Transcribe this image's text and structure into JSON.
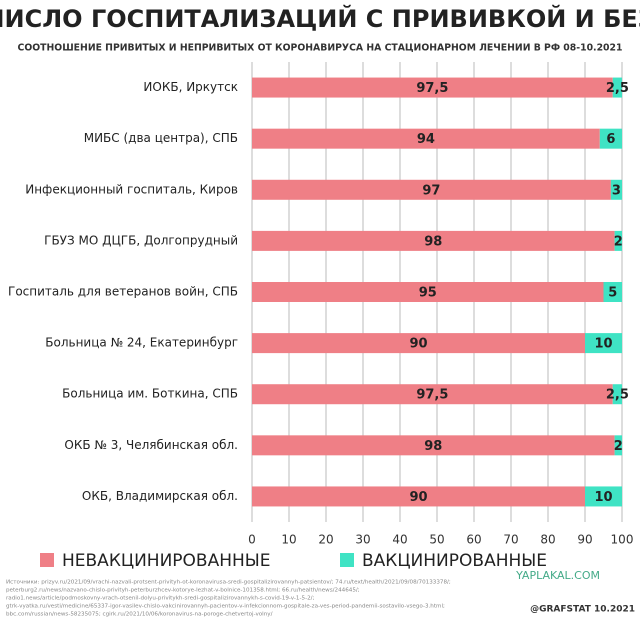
{
  "chart_data": {
    "type": "stacked-bar-horizontal",
    "title": "ЧИСЛО ГОСПИТАЛИЗАЦИЙ С ПРИВИВКОЙ И БЕЗ",
    "subtitle": "СООТНОШЕНИЕ ПРИВИТЫХ И НЕПРИВИТЫХ ОТ КОРОНАВИРУСА НА СТАЦИОНАРНОМ ЛЕЧЕНИИ В РФ 08-10.2021",
    "categories": [
      "ИОКБ, Иркутск",
      "МИБС (два центра), СПБ",
      "Инфекционный госпиталь, Киров",
      "ГБУЗ МО ДЦГБ, Долгопрудный",
      "Госпиталь для ветеранов войн, СПБ",
      "Больница № 24, Екатеринбург",
      "Больница им. Боткина, СПБ",
      "ОКБ № 3, Челябинская обл.",
      "ОКБ, Владимирская обл."
    ],
    "series": [
      {
        "name": "НЕВАКЦИНИРОВАННЫЕ",
        "color": "#ef7f86",
        "values": [
          97.5,
          94,
          97,
          98,
          95,
          90,
          97.5,
          98,
          90
        ],
        "value_labels": [
          "97,5",
          "94",
          "97",
          "98",
          "95",
          "90",
          "97,5",
          "98",
          "90"
        ]
      },
      {
        "name": "ВАКЦИНИРОВАННЫЕ",
        "color": "#3fe3c4",
        "values": [
          2.5,
          6,
          3,
          2,
          5,
          10,
          2.5,
          2,
          10
        ],
        "value_labels": [
          "2,5",
          "6",
          "3",
          "2",
          "5",
          "10",
          "2,5",
          "2",
          "10"
        ]
      }
    ],
    "xlim": [
      0,
      100
    ],
    "xticks": [
      0,
      10,
      20,
      30,
      40,
      50,
      60,
      70,
      80,
      90,
      100
    ],
    "grid": true,
    "sources": [
      "Источники: prizyv.ru/2021/09/vrachi-nazvali-protsent-privityh-ot-koronavirusa-sredi-gospitalizirovannyh-patsientov/; 74.ru/text/health/2021/09/08/70133378/;",
      "peterburg2.ru/news/nazvano-chislo-privityh-peterburzhcev-kotorye-lezhat-v-bolnice-101358.html; 66.ru/health/news/244645/;",
      "radio1.news/article/podmoskovny-vrach-otsenil-dolyu-privitykh-sredi-gospitalizirovannykh-s-covid-19-v-1-5-2/;",
      "gtrk-vyatka.ru/vesti/medicine/65337-igor-vasilev-chislo-vakcinirovannyh-pacientov-v-infekcionnom-gospitale-za-ves-period-pandemii-sostavilo-vsego-3.html;",
      "bbc.com/russian/news-58235075; cgirk.ru/2021/10/06/koronavirus-na-poroge-chetvertoj-volny/"
    ],
    "watermark": "YAPLAKAL.COM",
    "credit": "@GRAFSTAT 10.2021"
  }
}
